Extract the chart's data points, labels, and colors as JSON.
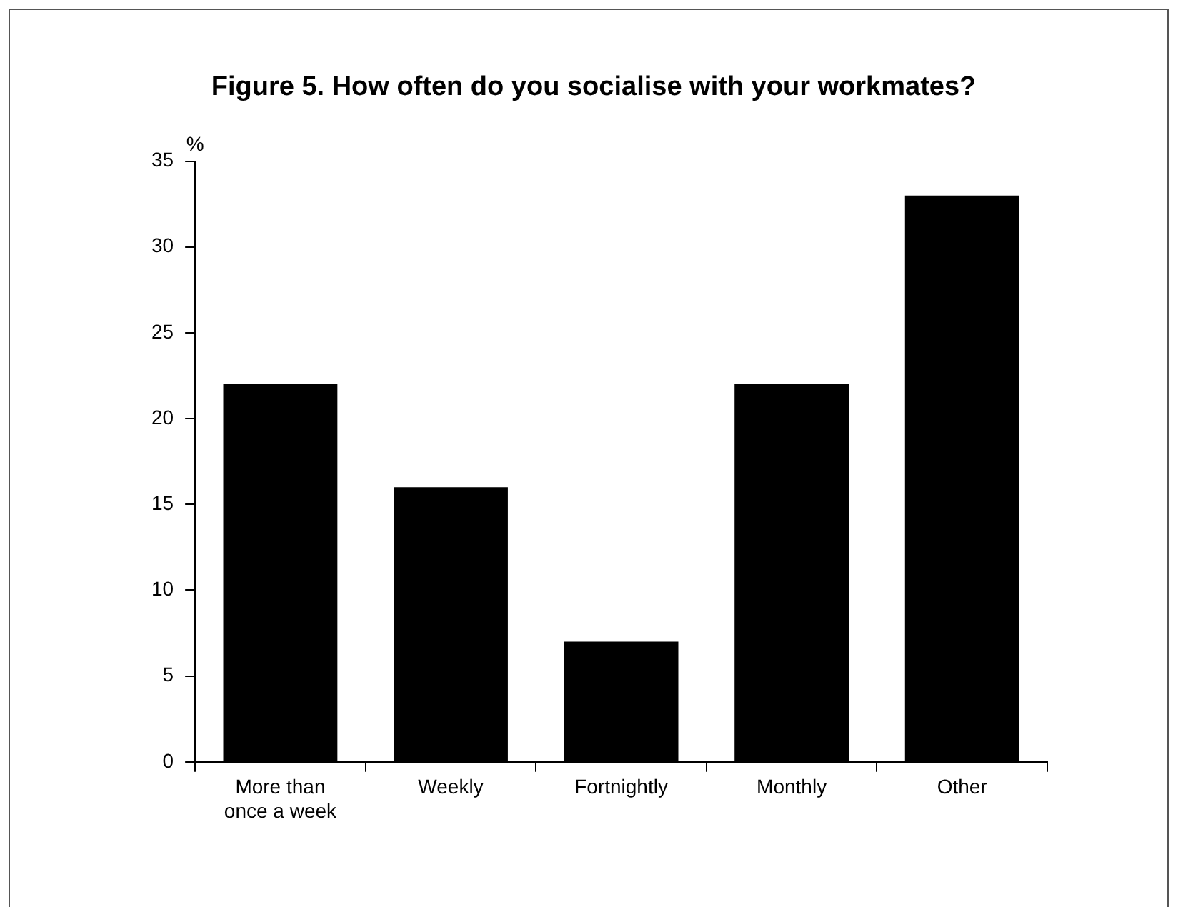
{
  "chart_data": {
    "type": "bar",
    "title": "Figure 5. How often do you socialise with your workmates?",
    "ylabel": "%",
    "categories": [
      "More than once a week",
      "Weekly",
      "Fortnightly",
      "Monthly",
      "Other"
    ],
    "values": [
      22,
      16,
      7,
      22,
      33
    ],
    "color": "#000000",
    "ylim": [
      0,
      35
    ],
    "yticks": [
      0,
      5,
      10,
      15,
      20,
      25,
      30,
      35
    ],
    "grid": false,
    "legend": false
  }
}
